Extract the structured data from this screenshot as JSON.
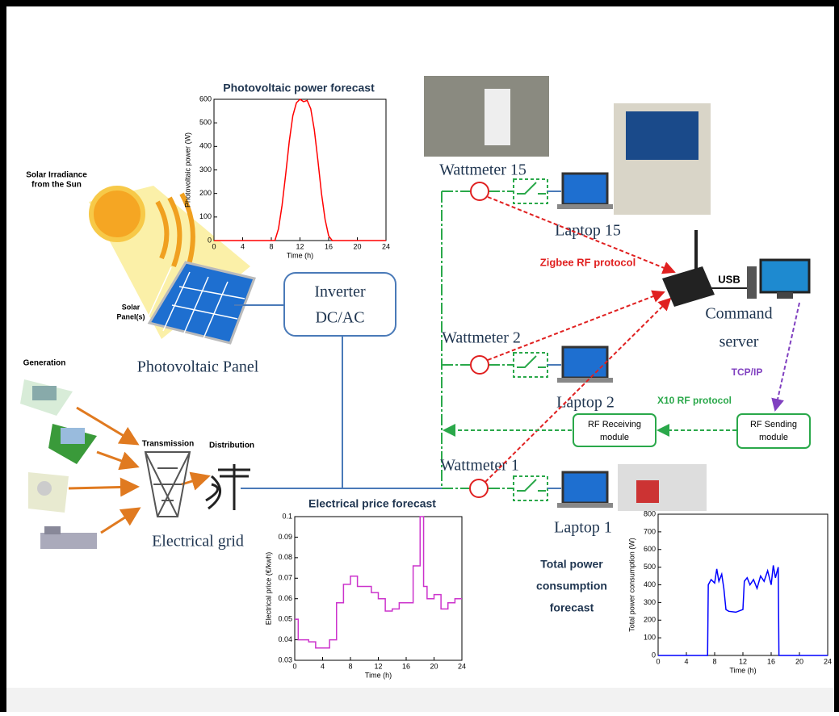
{
  "labels": {
    "solar_irradiance": [
      "Solar Irradiance",
      "from the Sun"
    ],
    "solar_panels": [
      "Solar",
      "Panel(s)"
    ],
    "photovoltaic_panel": "Photovoltaic Panel",
    "generation": "Generation",
    "transmission": "Transmission",
    "distribution": "Distribution",
    "electrical_grid": "Electrical grid",
    "inverter": [
      "Inverter",
      "DC/AC"
    ],
    "wattmeter_15": "Wattmeter 15",
    "laptop_15": "Laptop 15",
    "zigbee": "Zigbee RF protocol",
    "usb": "USB",
    "command_server": [
      "Command",
      "server"
    ],
    "tcp_ip": "TCP/IP",
    "wattmeter_2": "Wattmeter 2",
    "laptop_2": "Laptop 2",
    "x10": "X10 RF protocol",
    "rf_receiving": [
      "RF Receiving",
      "module"
    ],
    "rf_sending": [
      "RF Sending",
      "module"
    ],
    "wattmeter_1": "Wattmeter 1",
    "laptop_1": "Laptop 1",
    "total_power": [
      "Total power",
      "consumption",
      "forecast"
    ]
  },
  "charts": [
    {
      "type": "line",
      "title": "Photovoltaic power forecast",
      "xlabel": "Time (h)",
      "ylabel": "Photovoltaic power (W)",
      "color": "#ff0000",
      "x": [
        0,
        8.5,
        9,
        9.5,
        10,
        10.5,
        11,
        11.5,
        12,
        12.5,
        13,
        13.5,
        14,
        14.5,
        15,
        15.5,
        16,
        16.5,
        24
      ],
      "values": [
        0,
        0,
        50,
        150,
        280,
        420,
        530,
        585,
        600,
        590,
        595,
        560,
        470,
        340,
        200,
        90,
        20,
        0,
        0
      ],
      "xlim": [
        0,
        24
      ],
      "xticks": [
        0,
        4,
        8,
        12,
        16,
        20,
        24
      ],
      "ylim": [
        0,
        600
      ],
      "yticks": [
        0,
        100,
        200,
        300,
        400,
        500,
        600
      ]
    },
    {
      "type": "step",
      "title": "Electrical price forecast",
      "xlabel": "Time (h)",
      "ylabel": "Electrical price (€/kwh)",
      "color": "#cc33cc",
      "x": [
        0,
        0.5,
        2,
        3,
        4,
        5,
        6,
        7,
        8,
        9,
        10,
        11,
        12,
        13,
        14,
        15,
        16,
        17,
        18,
        18.5,
        19,
        20,
        21,
        22,
        23,
        24
      ],
      "values": [
        0.05,
        0.04,
        0.039,
        0.036,
        0.036,
        0.04,
        0.058,
        0.067,
        0.071,
        0.066,
        0.066,
        0.063,
        0.06,
        0.054,
        0.055,
        0.058,
        0.058,
        0.076,
        0.1,
        0.066,
        0.06,
        0.062,
        0.055,
        0.058,
        0.06,
        0.06
      ],
      "xlim": [
        0,
        24
      ],
      "xticks": [
        0,
        4,
        8,
        12,
        16,
        20,
        24
      ],
      "ylim": [
        0.03,
        0.1
      ],
      "yticks": [
        0.03,
        0.04,
        0.05,
        0.06,
        0.07,
        0.08,
        0.09,
        0.1
      ]
    },
    {
      "type": "line",
      "xlabel": "Time (h)",
      "ylabel": "Total power consumption (W)",
      "color": "#0000ff",
      "x": [
        0,
        7,
        7.1,
        7.5,
        8,
        8.3,
        8.6,
        9,
        9.3,
        9.6,
        10,
        11,
        12,
        12.2,
        12.6,
        13,
        13.5,
        14,
        14.5,
        15,
        15.5,
        16,
        16.3,
        16.6,
        17,
        17.1,
        24
      ],
      "values": [
        0,
        0,
        400,
        430,
        410,
        490,
        420,
        460,
        380,
        260,
        250,
        245,
        260,
        420,
        440,
        400,
        430,
        380,
        450,
        420,
        480,
        400,
        510,
        440,
        500,
        0,
        0
      ],
      "xlim": [
        0,
        24
      ],
      "xticks": [
        0,
        4,
        8,
        12,
        16,
        20,
        24
      ],
      "ylim": [
        0,
        800
      ],
      "yticks": [
        0,
        100,
        200,
        300,
        400,
        500,
        600,
        700,
        800
      ]
    }
  ]
}
